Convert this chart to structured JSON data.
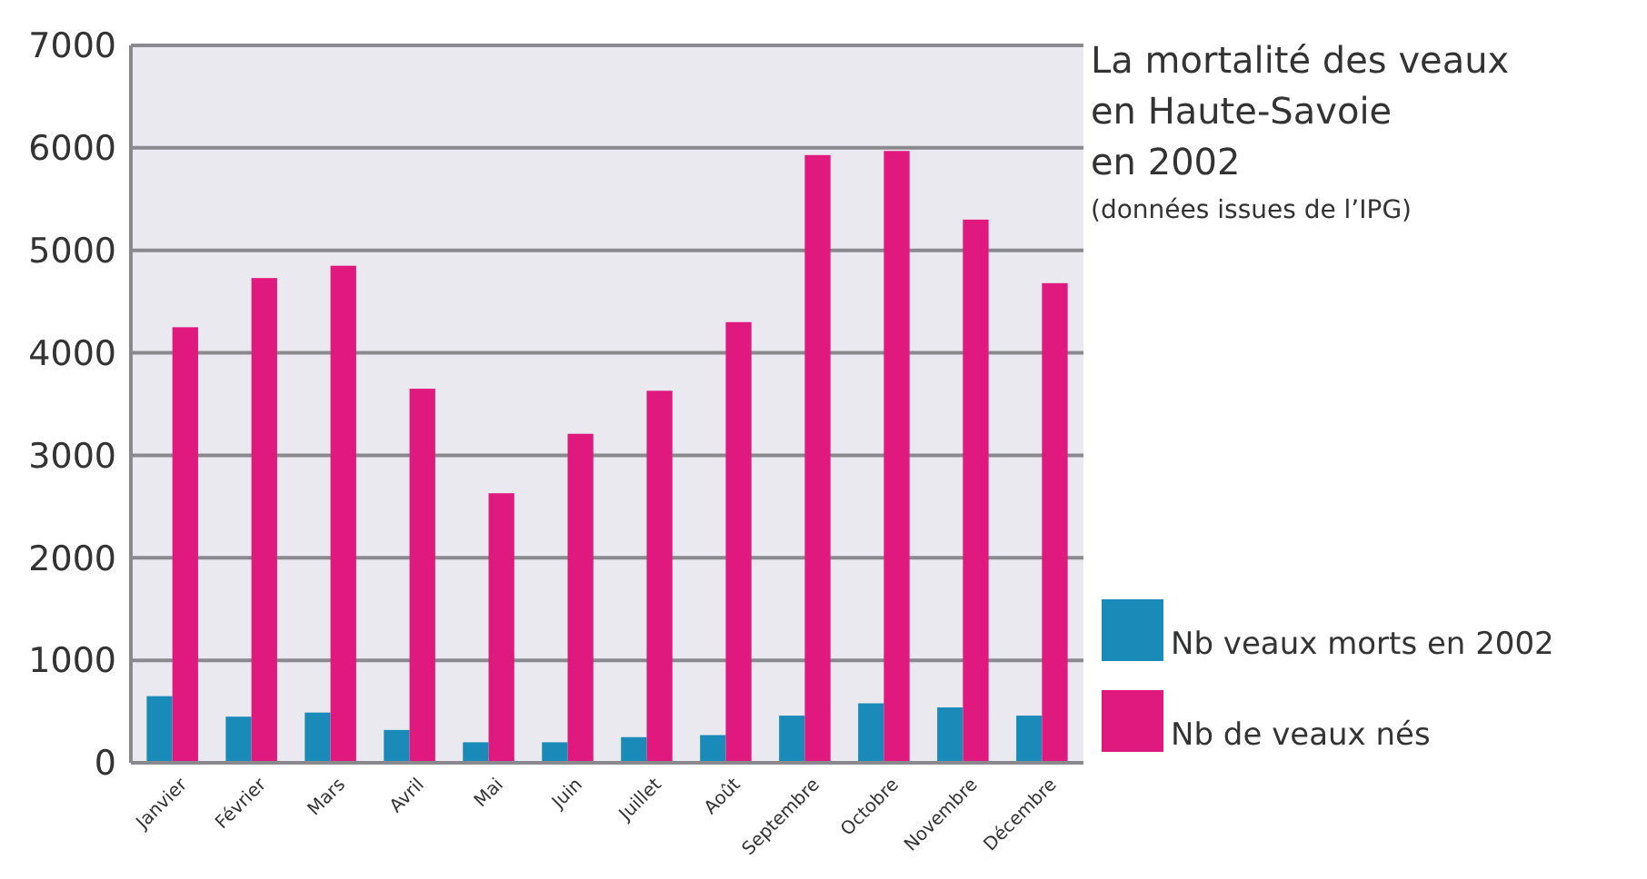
{
  "chart_data": {
    "type": "bar",
    "title": "La mortalité des veaux\nen Haute-Savoie\nen 2002",
    "subtitle": "(données issues de l’IPG)",
    "categories": [
      "Janvier",
      "Février",
      "Mars",
      "Avril",
      "Mai",
      "Juin",
      "Juillet",
      "Août",
      "Septembre",
      "Octobre",
      "Novembre",
      "Décembre"
    ],
    "series": [
      {
        "name": "Nb veaux morts en 2002",
        "color": "#1a8ab8",
        "values": [
          650,
          450,
          490,
          320,
          200,
          200,
          250,
          270,
          460,
          580,
          540,
          460
        ]
      },
      {
        "name": "Nb de veaux nés",
        "color": "#e0197e",
        "values": [
          4250,
          4730,
          4850,
          3650,
          2630,
          3210,
          3630,
          4300,
          5930,
          5970,
          5300,
          4680
        ]
      }
    ],
    "ylim": [
      0,
      7000
    ],
    "yticks": [
      0,
      1000,
      2000,
      3000,
      4000,
      5000,
      6000,
      7000
    ],
    "grid": "y",
    "legend": "bottom right"
  }
}
